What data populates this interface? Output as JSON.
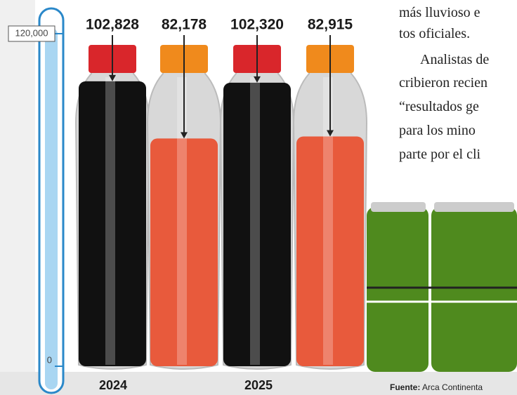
{
  "chart_data": {
    "type": "bar",
    "categories": [
      "2024",
      "2025"
    ],
    "series": [
      {
        "color": "#111111",
        "cap": "#d9262b",
        "values": [
          102828,
          102320
        ],
        "value_labels": [
          "102,828",
          "102,320"
        ]
      },
      {
        "color": "#e85a3c",
        "cap": "#f08a1c",
        "values": [
          82178,
          82915
        ],
        "value_labels": [
          "82,178",
          "82,915"
        ]
      }
    ],
    "ylim": [
      0,
      120000
    ],
    "yticks": [
      0,
      {
        "value": 120000,
        "label": "120,000"
      }
    ],
    "article_text": [
      "más lluvioso e",
      "tos oficiales.",
      "Analistas de",
      "cribieron recien",
      "“resultados ge",
      "para los mino",
      "parte por el cli"
    ],
    "source": {
      "label": "Fuente:",
      "text": "Arca Continenta"
    }
  }
}
